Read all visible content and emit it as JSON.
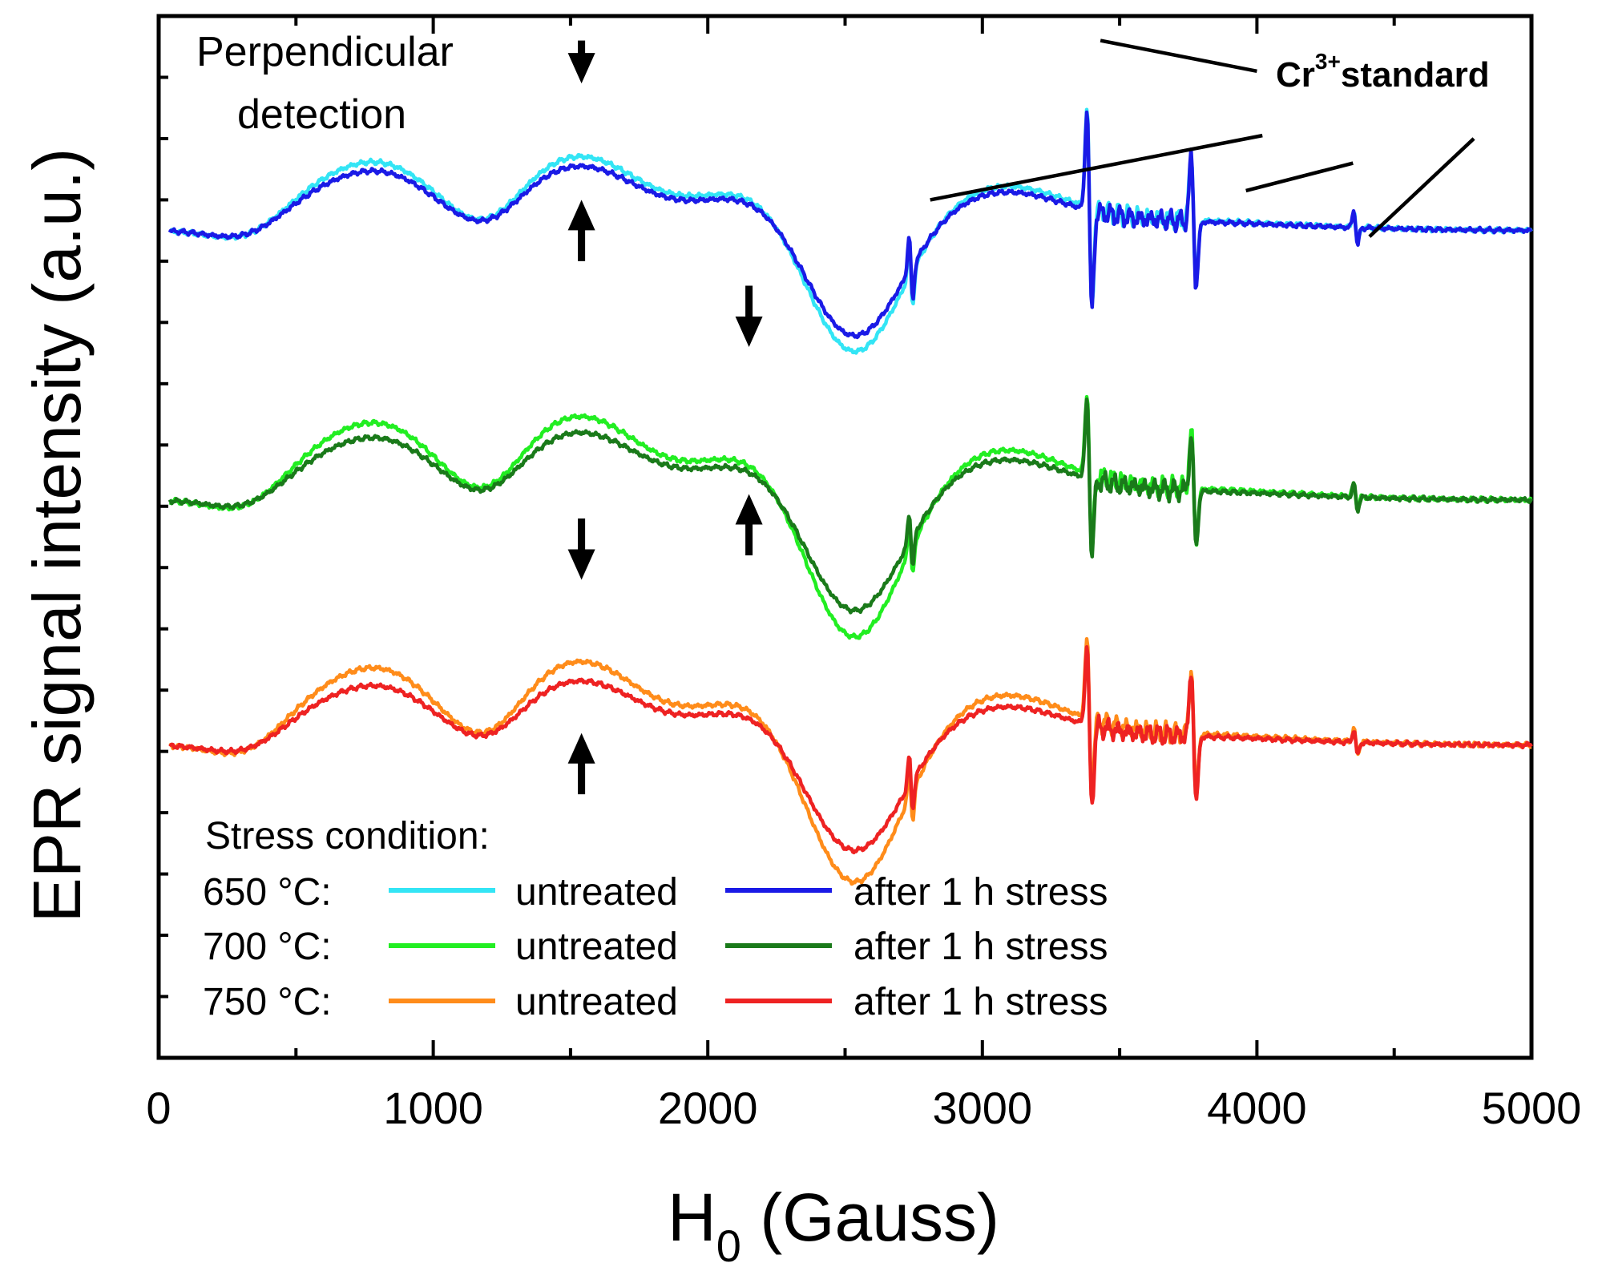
{
  "chart_data": {
    "type": "line",
    "title": "",
    "xlabel_main": "H",
    "xlabel_sub": "0",
    "xlabel_rest": " (Gauss)",
    "ylabel": "EPR signal intensity (a.u.)",
    "xlim": [
      0,
      5000
    ],
    "ylim": [
      0,
      17
    ],
    "xticks": [
      0,
      1000,
      2000,
      3000,
      4000,
      5000
    ],
    "xtick_labels": [
      "0",
      "1000",
      "2000",
      "3000",
      "4000",
      "5000"
    ],
    "annotations": {
      "perp_line1": "Perpendicular",
      "perp_line2": "detection",
      "cr_base": "Cr",
      "cr_sup": "3+",
      "cr_rest": "standard"
    },
    "legend": {
      "heading": "Stress condition:",
      "rows": [
        {
          "temp": "650 °C:",
          "untreated": "untreated",
          "stressed": "after 1 h stress",
          "untreated_color": "#33e5f5",
          "stressed_color": "#1a1ae6"
        },
        {
          "temp": "700 °C:",
          "untreated": "untreated",
          "stressed": "after 1 h stress",
          "untreated_color": "#22ee22",
          "stressed_color": "#1a7a1a"
        },
        {
          "temp": "750 °C:",
          "untreated": "untreated",
          "stressed": "after 1 h stress",
          "untreated_color": "#ff8c1a",
          "stressed_color": "#ee2222"
        }
      ]
    },
    "series": [
      {
        "name": "650 °C untreated",
        "color": "#33e5f5",
        "offset": 13.5,
        "scale": 1.15,
        "peaks": [
          0.6,
          0.5,
          0.35,
          0.2
        ]
      },
      {
        "name": "650 °C after 1 h stress",
        "color": "#1a1ae6",
        "offset": 13.5,
        "scale": 1.0,
        "peaks": [
          0.6,
          0.5,
          0.35,
          0.2
        ]
      },
      {
        "name": "700 °C untreated",
        "color": "#22ee22",
        "offset": 9.1,
        "scale": 1.3,
        "peaks": [
          0.5,
          0.4,
          0.3,
          0.15
        ]
      },
      {
        "name": "700 °C after 1 h stress",
        "color": "#1a7a1a",
        "offset": 9.1,
        "scale": 1.05,
        "peaks": [
          0.5,
          0.4,
          0.3,
          0.15
        ]
      },
      {
        "name": "750 °C untreated",
        "color": "#ff8c1a",
        "offset": 5.1,
        "scale": 1.3,
        "peaks": [
          0.5,
          0.4,
          0.35,
          0.15
        ]
      },
      {
        "name": "750 °C after 1 h stress",
        "color": "#ee2222",
        "offset": 5.1,
        "scale": 1.0,
        "peaks": [
          0.5,
          0.4,
          0.35,
          0.15
        ]
      }
    ],
    "arrows": [
      {
        "x": 1540,
        "y_from": 16.6,
        "y_to": 15.9
      },
      {
        "x": 1540,
        "y_from": 13.0,
        "y_to": 14.0
      },
      {
        "x": 2150,
        "y_from": 12.6,
        "y_to": 11.6
      },
      {
        "x": 2150,
        "y_from": 8.2,
        "y_to": 9.2
      },
      {
        "x": 1540,
        "y_from": 8.8,
        "y_to": 7.8
      },
      {
        "x": 1540,
        "y_from": 4.3,
        "y_to": 5.3
      }
    ],
    "cr_marker_lines": [
      {
        "x1": 3430,
        "y1": 16.6,
        "x2": 4000,
        "y2": 16.1
      },
      {
        "x1": 2810,
        "y1": 14.0,
        "x2": 4020,
        "y2": 15.05
      },
      {
        "x1": 3960,
        "y1": 14.15,
        "x2": 4350,
        "y2": 14.6
      },
      {
        "x1": 4410,
        "y1": 13.4,
        "x2": 4790,
        "y2": 15.0
      }
    ]
  }
}
